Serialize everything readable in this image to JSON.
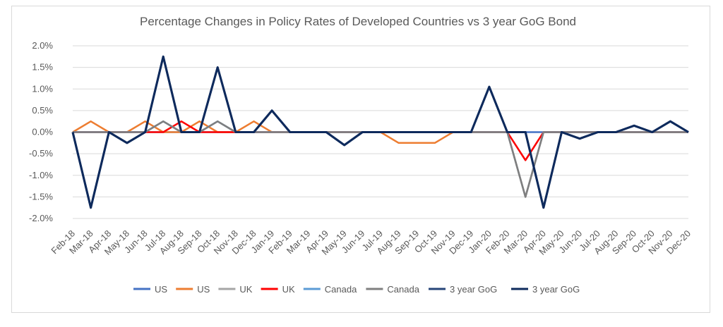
{
  "chart_data": {
    "type": "line",
    "title": "Percentage Changes in Policy Rates of Developed Countries vs 3 year GoG Bond",
    "xlabel": "",
    "ylabel": "",
    "ylim": [
      -0.02,
      0.02
    ],
    "y_ticks": [
      0.02,
      0.015,
      0.01,
      0.005,
      0.0,
      -0.005,
      -0.01,
      -0.015,
      -0.02
    ],
    "y_tick_labels": [
      "2.0%",
      "1.5%",
      "1.0%",
      "0.5%",
      "0.0%",
      "-0.5%",
      "-1.0%",
      "-1.5%",
      "-2.0%"
    ],
    "grid": true,
    "legend_position": "bottom",
    "categories": [
      "Feb-18",
      "Mar-18",
      "Apr-18",
      "May-18",
      "Jun-18",
      "Jul-18",
      "Aug-18",
      "Sep-18",
      "Oct-18",
      "Nov-18",
      "Dec-18",
      "Jan-19",
      "Feb-19",
      "Mar-19",
      "Apr-19",
      "May-19",
      "Jun-19",
      "Jul-19",
      "Aug-19",
      "Sep-19",
      "Oct-19",
      "Nov-19",
      "Dec-19",
      "Jan-20",
      "Feb-20",
      "Mar-20",
      "Apr-20",
      "May-20",
      "Jun-20",
      "Jul-20",
      "Aug-20",
      "Sep-20",
      "Oct-20",
      "Nov-20",
      "Dec-20"
    ],
    "series": [
      {
        "name": "US",
        "color": "#4472c4",
        "values": [
          0,
          0,
          0,
          0,
          0,
          0,
          0,
          0,
          0,
          0,
          0,
          0,
          0,
          0,
          0,
          0,
          0,
          0,
          0,
          0,
          0,
          0,
          0,
          0,
          0,
          0,
          0,
          0,
          0,
          0,
          0,
          0,
          0,
          0,
          0
        ]
      },
      {
        "name": "US",
        "color": "#ed7d31",
        "values": [
          0,
          0.0025,
          0,
          0,
          0.0025,
          0,
          0,
          0.0025,
          0,
          0,
          0.0025,
          0,
          0,
          0,
          0,
          0,
          0,
          0,
          -0.0025,
          -0.0025,
          -0.0025,
          0,
          0,
          0,
          0,
          -0.015,
          0,
          0,
          0,
          0,
          0,
          0,
          0,
          0,
          0
        ]
      },
      {
        "name": "UK",
        "color": "#a5a5a5",
        "values": [
          0,
          0,
          0,
          0,
          0,
          0.0025,
          0,
          0,
          0.0025,
          0,
          0,
          0,
          0,
          0,
          0,
          0,
          0,
          0,
          0,
          0,
          0,
          0,
          0,
          0,
          0,
          -0.0065,
          0,
          0,
          0,
          0,
          0,
          0,
          0,
          0,
          0
        ]
      },
      {
        "name": "UK",
        "color": "#ff0000",
        "values": [
          0,
          0,
          0,
          0,
          0,
          0,
          0.0025,
          0,
          0,
          0,
          0,
          0,
          0,
          0,
          0,
          0,
          0,
          0,
          0,
          0,
          0,
          0,
          0,
          0,
          0,
          -0.0065,
          0,
          0,
          0,
          0,
          0,
          0,
          0,
          0,
          0
        ]
      },
      {
        "name": "Canada",
        "color": "#5b9bd5",
        "values": [
          0,
          0,
          0,
          0,
          0,
          0.0025,
          0,
          0,
          0.0025,
          0,
          0,
          0,
          0,
          0,
          0,
          0,
          0,
          0,
          0,
          0,
          0,
          0,
          0,
          0,
          0,
          -0.015,
          0,
          0,
          0,
          0,
          0,
          0,
          0,
          0,
          0
        ]
      },
      {
        "name": "Canada",
        "color": "#7f7f7f",
        "values": [
          0,
          0,
          0,
          0,
          0,
          0.0025,
          0,
          0,
          0.0025,
          0,
          0,
          0,
          0,
          0,
          0,
          0,
          0,
          0,
          0,
          0,
          0,
          0,
          0,
          0,
          0,
          -0.015,
          0,
          0,
          0,
          0,
          0,
          0,
          0,
          0,
          0
        ]
      },
      {
        "name": "3 year GoG",
        "color": "#264478",
        "values": [
          0,
          -0.0175,
          0,
          -0.0025,
          0,
          0.0175,
          0,
          0,
          0.015,
          0,
          0,
          0.005,
          0,
          0,
          0,
          -0.003,
          0,
          0,
          0,
          0,
          0,
          0,
          0,
          0.0105,
          0,
          0,
          -0.0175,
          0,
          -0.0015,
          0,
          0,
          0.0015,
          0,
          0.0025,
          0
        ]
      },
      {
        "name": "3 year GoG",
        "color": "#0e2a5c",
        "values": [
          0,
          -0.0175,
          0,
          -0.0025,
          0,
          0.0175,
          0,
          0,
          0.015,
          0,
          0,
          0.005,
          0,
          0,
          0,
          -0.003,
          0,
          0,
          0,
          0,
          0,
          0,
          0,
          0.0105,
          0,
          0,
          -0.0175,
          0,
          -0.0015,
          0,
          0,
          0.0015,
          0,
          0.0025,
          0
        ]
      }
    ]
  }
}
